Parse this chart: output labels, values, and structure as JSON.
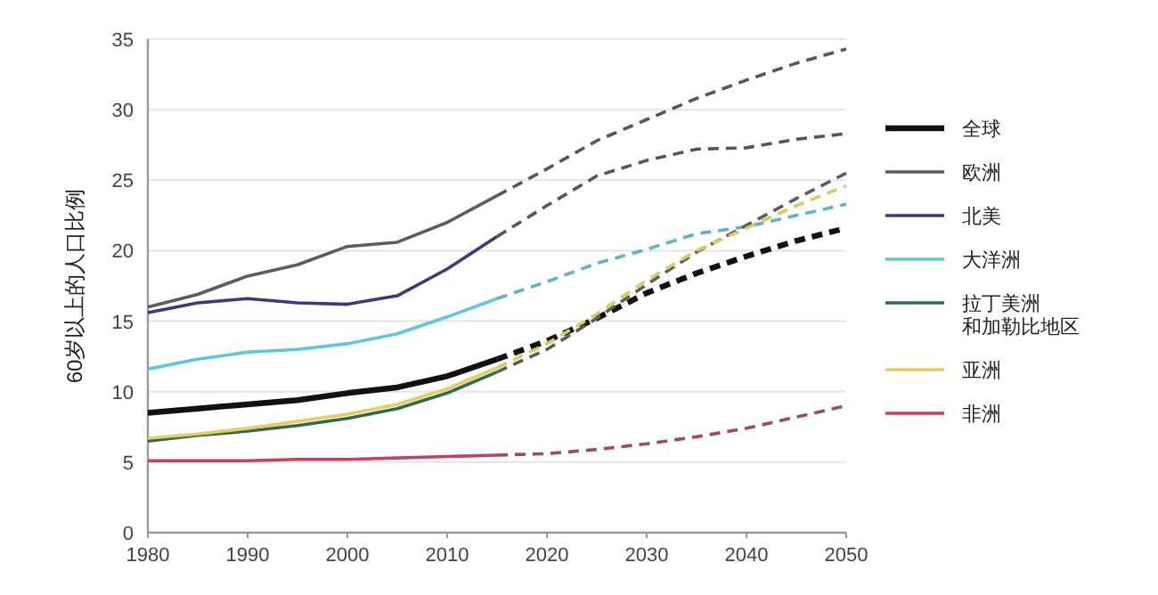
{
  "chart_data": {
    "type": "line",
    "ylabel": "60岁以上的人口比例",
    "xlim": [
      1980,
      2050
    ],
    "xticks": [
      1980,
      1990,
      2000,
      2010,
      2020,
      2030,
      2040,
      2050
    ],
    "ylim": [
      0,
      35
    ],
    "yticks": [
      0,
      5,
      10,
      15,
      20,
      25,
      30,
      35
    ],
    "grid": "y",
    "legend": "right",
    "series": [
      {
        "name": "全球",
        "color": "#111111",
        "line_style": "solid",
        "x": [
          1980,
          1985,
          1990,
          1995,
          2000,
          2005,
          2010,
          2015
        ],
        "values": [
          8.5,
          8.8,
          9.1,
          9.4,
          9.9,
          10.3,
          11.1,
          12.3
        ]
      },
      {
        "color": "#111111",
        "line_style": "dashed",
        "x": [
          2015,
          2020,
          2025,
          2030,
          2035,
          2040,
          2045,
          2050
        ],
        "values": [
          12.3,
          13.6,
          15.2,
          17.0,
          18.4,
          19.6,
          20.7,
          21.6
        ]
      },
      {
        "name": "欧洲",
        "color": "#5e5868",
        "line_style": "solid",
        "x": [
          1980,
          1985,
          1990,
          1995,
          2000,
          2005,
          2010,
          2015
        ],
        "values": [
          16.0,
          16.9,
          18.2,
          19.0,
          20.3,
          20.6,
          22.0,
          23.9
        ]
      },
      {
        "color": "#55555c",
        "line_style": "dashed",
        "x": [
          2015,
          2020,
          2025,
          2030,
          2035,
          2040,
          2045,
          2050
        ],
        "values": [
          23.9,
          25.8,
          27.8,
          29.3,
          30.8,
          32.1,
          33.3,
          34.3
        ]
      },
      {
        "name": "北美",
        "color": "#3a3a7e",
        "line_style": "solid",
        "x": [
          1980,
          1985,
          1990,
          1995,
          2000,
          2005,
          2010,
          2015
        ],
        "values": [
          15.6,
          16.3,
          16.6,
          16.3,
          16.2,
          16.8,
          18.7,
          21.0
        ]
      },
      {
        "color": "#55555c",
        "line_style": "dashed",
        "x": [
          2015,
          2020,
          2025,
          2030,
          2035,
          2040,
          2045,
          2050
        ],
        "values": [
          21.0,
          23.2,
          25.3,
          26.4,
          27.2,
          27.3,
          27.9,
          28.3
        ]
      },
      {
        "name": "大洋洲",
        "color": "#5cc8df",
        "line_style": "solid",
        "x": [
          1980,
          1985,
          1990,
          1995,
          2000,
          2005,
          2010,
          2015
        ],
        "values": [
          11.6,
          12.3,
          12.8,
          13.0,
          13.4,
          14.1,
          15.3,
          16.6
        ]
      },
      {
        "color": "#5cb4c4",
        "line_style": "dashed",
        "x": [
          2015,
          2020,
          2025,
          2030,
          2035,
          2040,
          2045,
          2050
        ],
        "values": [
          16.6,
          17.8,
          19.1,
          20.1,
          21.2,
          21.7,
          22.5,
          23.3
        ]
      },
      {
        "name": "拉丁美洲和加勒比地区",
        "color": "#2e6b52",
        "line_style": "solid",
        "x": [
          1980,
          1985,
          1990,
          1995,
          2000,
          2005,
          2010,
          2015
        ],
        "values": [
          6.5,
          6.9,
          7.2,
          7.6,
          8.1,
          8.8,
          9.9,
          11.4
        ]
      },
      {
        "color": "#55605a",
        "line_style": "dashed",
        "x": [
          2015,
          2020,
          2025,
          2030,
          2035,
          2040,
          2045,
          2050
        ],
        "values": [
          11.4,
          13.0,
          15.2,
          17.6,
          19.9,
          21.8,
          23.7,
          25.5
        ]
      },
      {
        "name": "亚洲",
        "color": "#e8cc5c",
        "line_style": "solid",
        "x": [
          1980,
          1985,
          1990,
          1995,
          2000,
          2005,
          2010,
          2015
        ],
        "values": [
          6.7,
          7.0,
          7.4,
          7.9,
          8.4,
          9.1,
          10.2,
          11.7
        ]
      },
      {
        "color": "#d8cc60",
        "line_style": "dashed",
        "x": [
          2015,
          2020,
          2025,
          2030,
          2035,
          2040,
          2045,
          2050
        ],
        "values": [
          11.7,
          13.4,
          15.5,
          17.9,
          20.0,
          21.6,
          23.2,
          24.6
        ]
      },
      {
        "name": "非洲",
        "color": "#c04462",
        "line_style": "solid",
        "x": [
          1980,
          1985,
          1990,
          1995,
          2000,
          2005,
          2010,
          2015
        ],
        "values": [
          5.1,
          5.1,
          5.1,
          5.2,
          5.2,
          5.3,
          5.4,
          5.5
        ]
      },
      {
        "color": "#a04866",
        "line_style": "dashed",
        "x": [
          2015,
          2020,
          2025,
          2030,
          2035,
          2040,
          2045,
          2050
        ],
        "values": [
          5.5,
          5.6,
          5.9,
          6.3,
          6.8,
          7.4,
          8.2,
          9.0
        ]
      }
    ]
  }
}
